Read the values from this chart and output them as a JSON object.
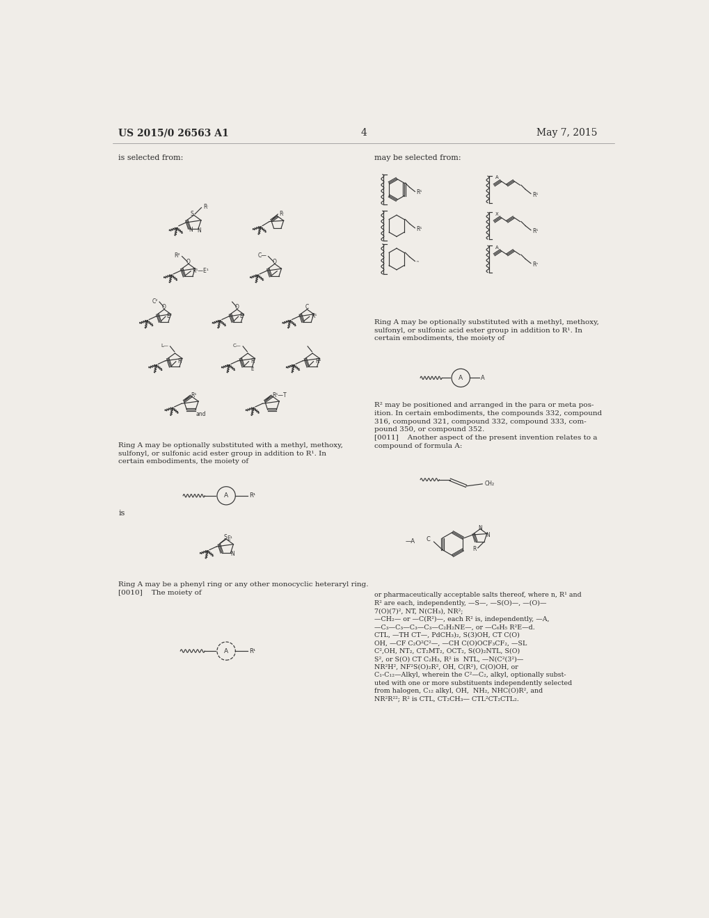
{
  "page_bg": "#f0ede8",
  "text_color": "#2a2a2a",
  "header_left": "US 2015/0 26563 A1",
  "header_right": "May 7, 2015",
  "page_number": "4",
  "left_top_text": "is selected from:",
  "right_top_text": "may be selected from:",
  "left_body1": "Ring A may be optionally substituted with a methyl, methoxy,\nsulfonyl, or sulfonic acid ester group in addition to R¹. In\ncertain embodiments, the moiety of",
  "left_is": "is",
  "left_body2": "Ring A may be a phenyl ring or any other monocyclic heteraryl ring.\n[0010]    The moiety of",
  "right_body1": "Ring A may be optionally substituted with a methyl, methoxy,\nsulfonyl, or sulfonic acid ester group in addition to R¹. In\ncertain embodiments, the moiety of",
  "right_body2": "R² may be positioned and arranged in the para or meta pos-\nition. In certain embodiments, the compounds 332, compound\n316, compound 321, compound 332, compound 333, com-\npound 350, or compound 352.\n[0011]    Another aspect of the present invention relates to a\ncompound of formula A:",
  "right_body3": "or pharmaceutically acceptable salts thereof, where n, R¹ and\nR² are each, independently, —S—, —S(O)—, —(O)—\n7(O)(7)², NT, N(CH₃), NR²;\n—CH₂— or —C(R²)—, each R² is, independently, —A,\n—C₃—C₃—C₃—C₃—C₂H₂NE—, or —C₆H₅ R²E—d.\nCTL, —TH CT—, PdCH₃)₂, S(3)OH, CT C(O)\nOH, —CF C₂O²C²—, —CH C(O)OCF₃CF₂, —SL\nC²,OH, NT₂, CT₂MT₂, OCT₂, S(O)₂NTL, S(O)\nS², or S(O) CT C₂H₃, R² is  NTL, —N(C²(3²)—\nNR²H², NF²S(O)₂R², OH, C(R²), C(O)OH, or\nC₁-C₁₂—Alkyl, wherein the C²—C₂, alkyl, optionally subst-\nuted with one or more substituents independently selected\nfrom halogen, C₁₂ alkyl, OH,  NH₂, NHC(O)R², and\nNR²R²²; R² is CTL, CT₂CH₃— CTL²CT₂CTL₂."
}
